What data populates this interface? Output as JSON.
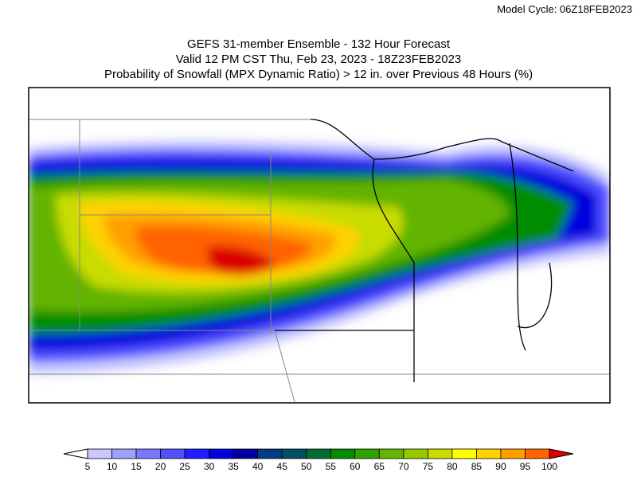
{
  "header": {
    "model_cycle": "Model Cycle: 06Z18FEB2023"
  },
  "title": {
    "line1": "GEFS 31-member Ensemble - 132 Hour Forecast",
    "line2": "Valid 12 PM CST Thu, Feb 23, 2023 - 18Z23FEB2023",
    "line3": "Probability of Snowfall (MPX Dynamic Ratio) > 12 in. over Previous 48 Hours (%)"
  },
  "colorbar": {
    "ticks": [
      5,
      10,
      15,
      20,
      25,
      30,
      35,
      40,
      45,
      50,
      55,
      60,
      65,
      70,
      75,
      80,
      85,
      90,
      95,
      100
    ],
    "colors": [
      "#c8c8ff",
      "#a0a0ff",
      "#7878ff",
      "#5050ff",
      "#1e1eff",
      "#0000dc",
      "#0000a0",
      "#003c82",
      "#005064",
      "#006e32",
      "#008c00",
      "#32a000",
      "#64b400",
      "#96c800",
      "#c8dc00",
      "#ffff00",
      "#ffd200",
      "#ffa000",
      "#ff6400"
    ],
    "under_color": "#ffffff",
    "over_color": "#dc0000"
  }
}
